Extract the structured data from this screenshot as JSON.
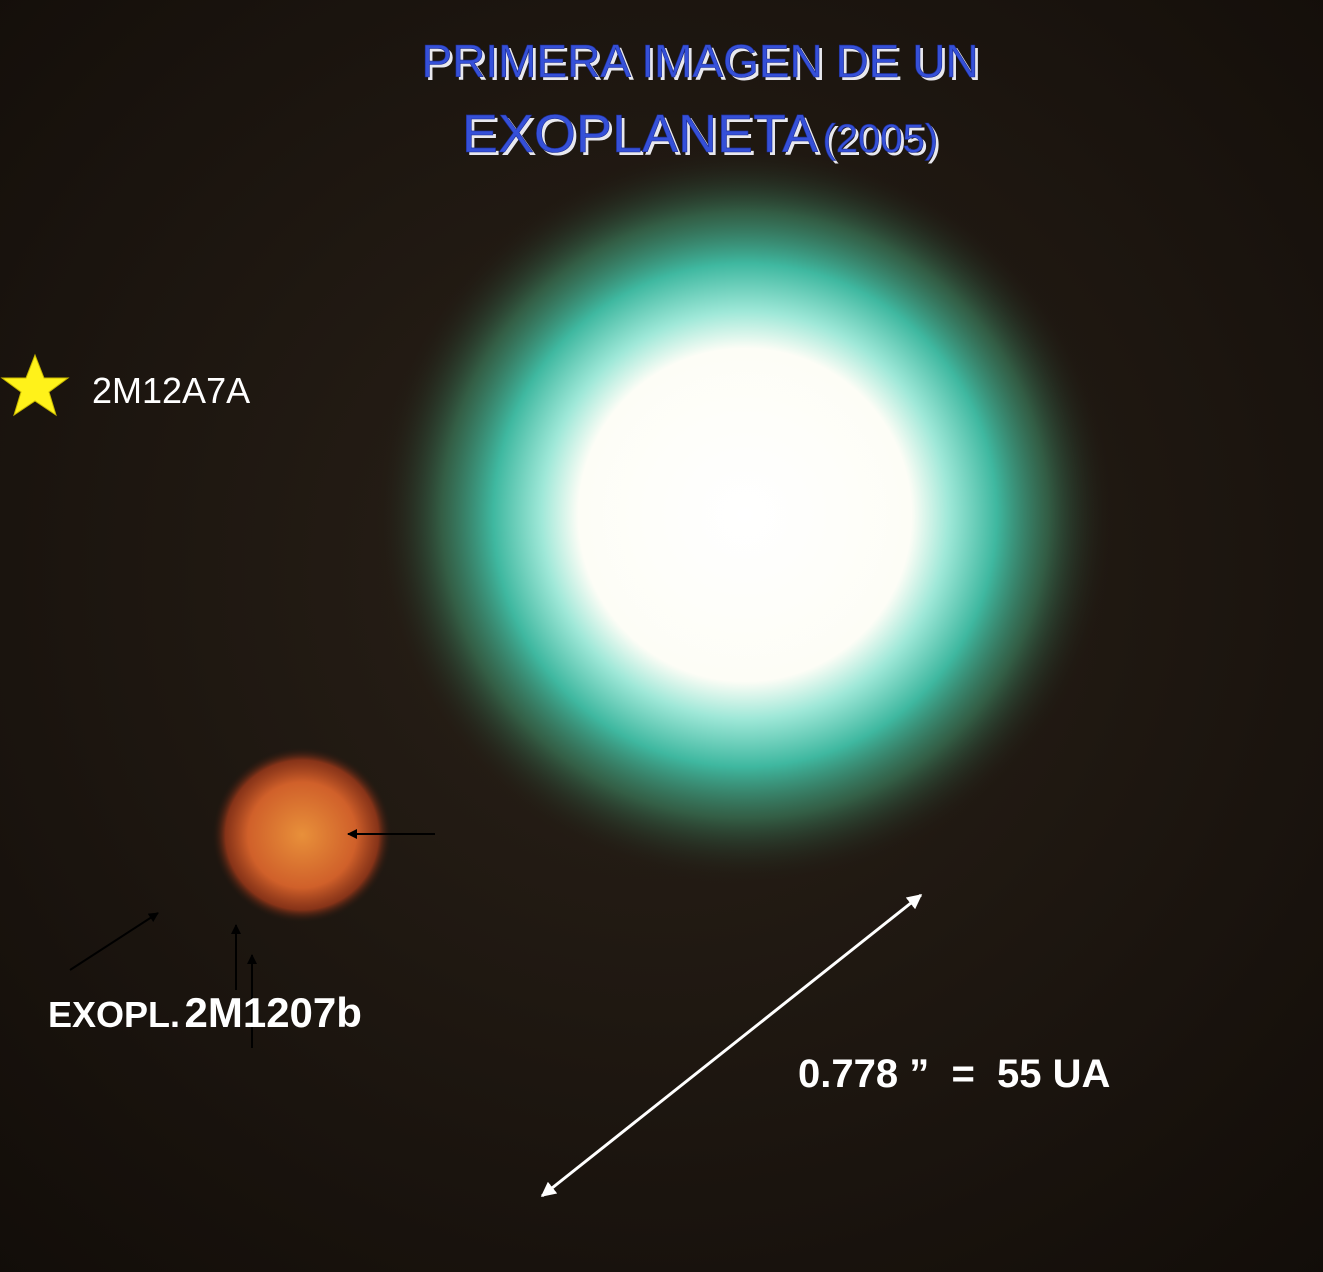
{
  "header": {
    "line1": "PRIMERA IMAGEN DE UN",
    "line2_main": "EXOPLANETA",
    "line2_year": "(2005)"
  },
  "labels": {
    "star": "2M12A7A",
    "planet_prefix": "EXOPL.",
    "planet_name": "2M1207b",
    "scale": "0.778 ”  =  55 UA"
  }
}
